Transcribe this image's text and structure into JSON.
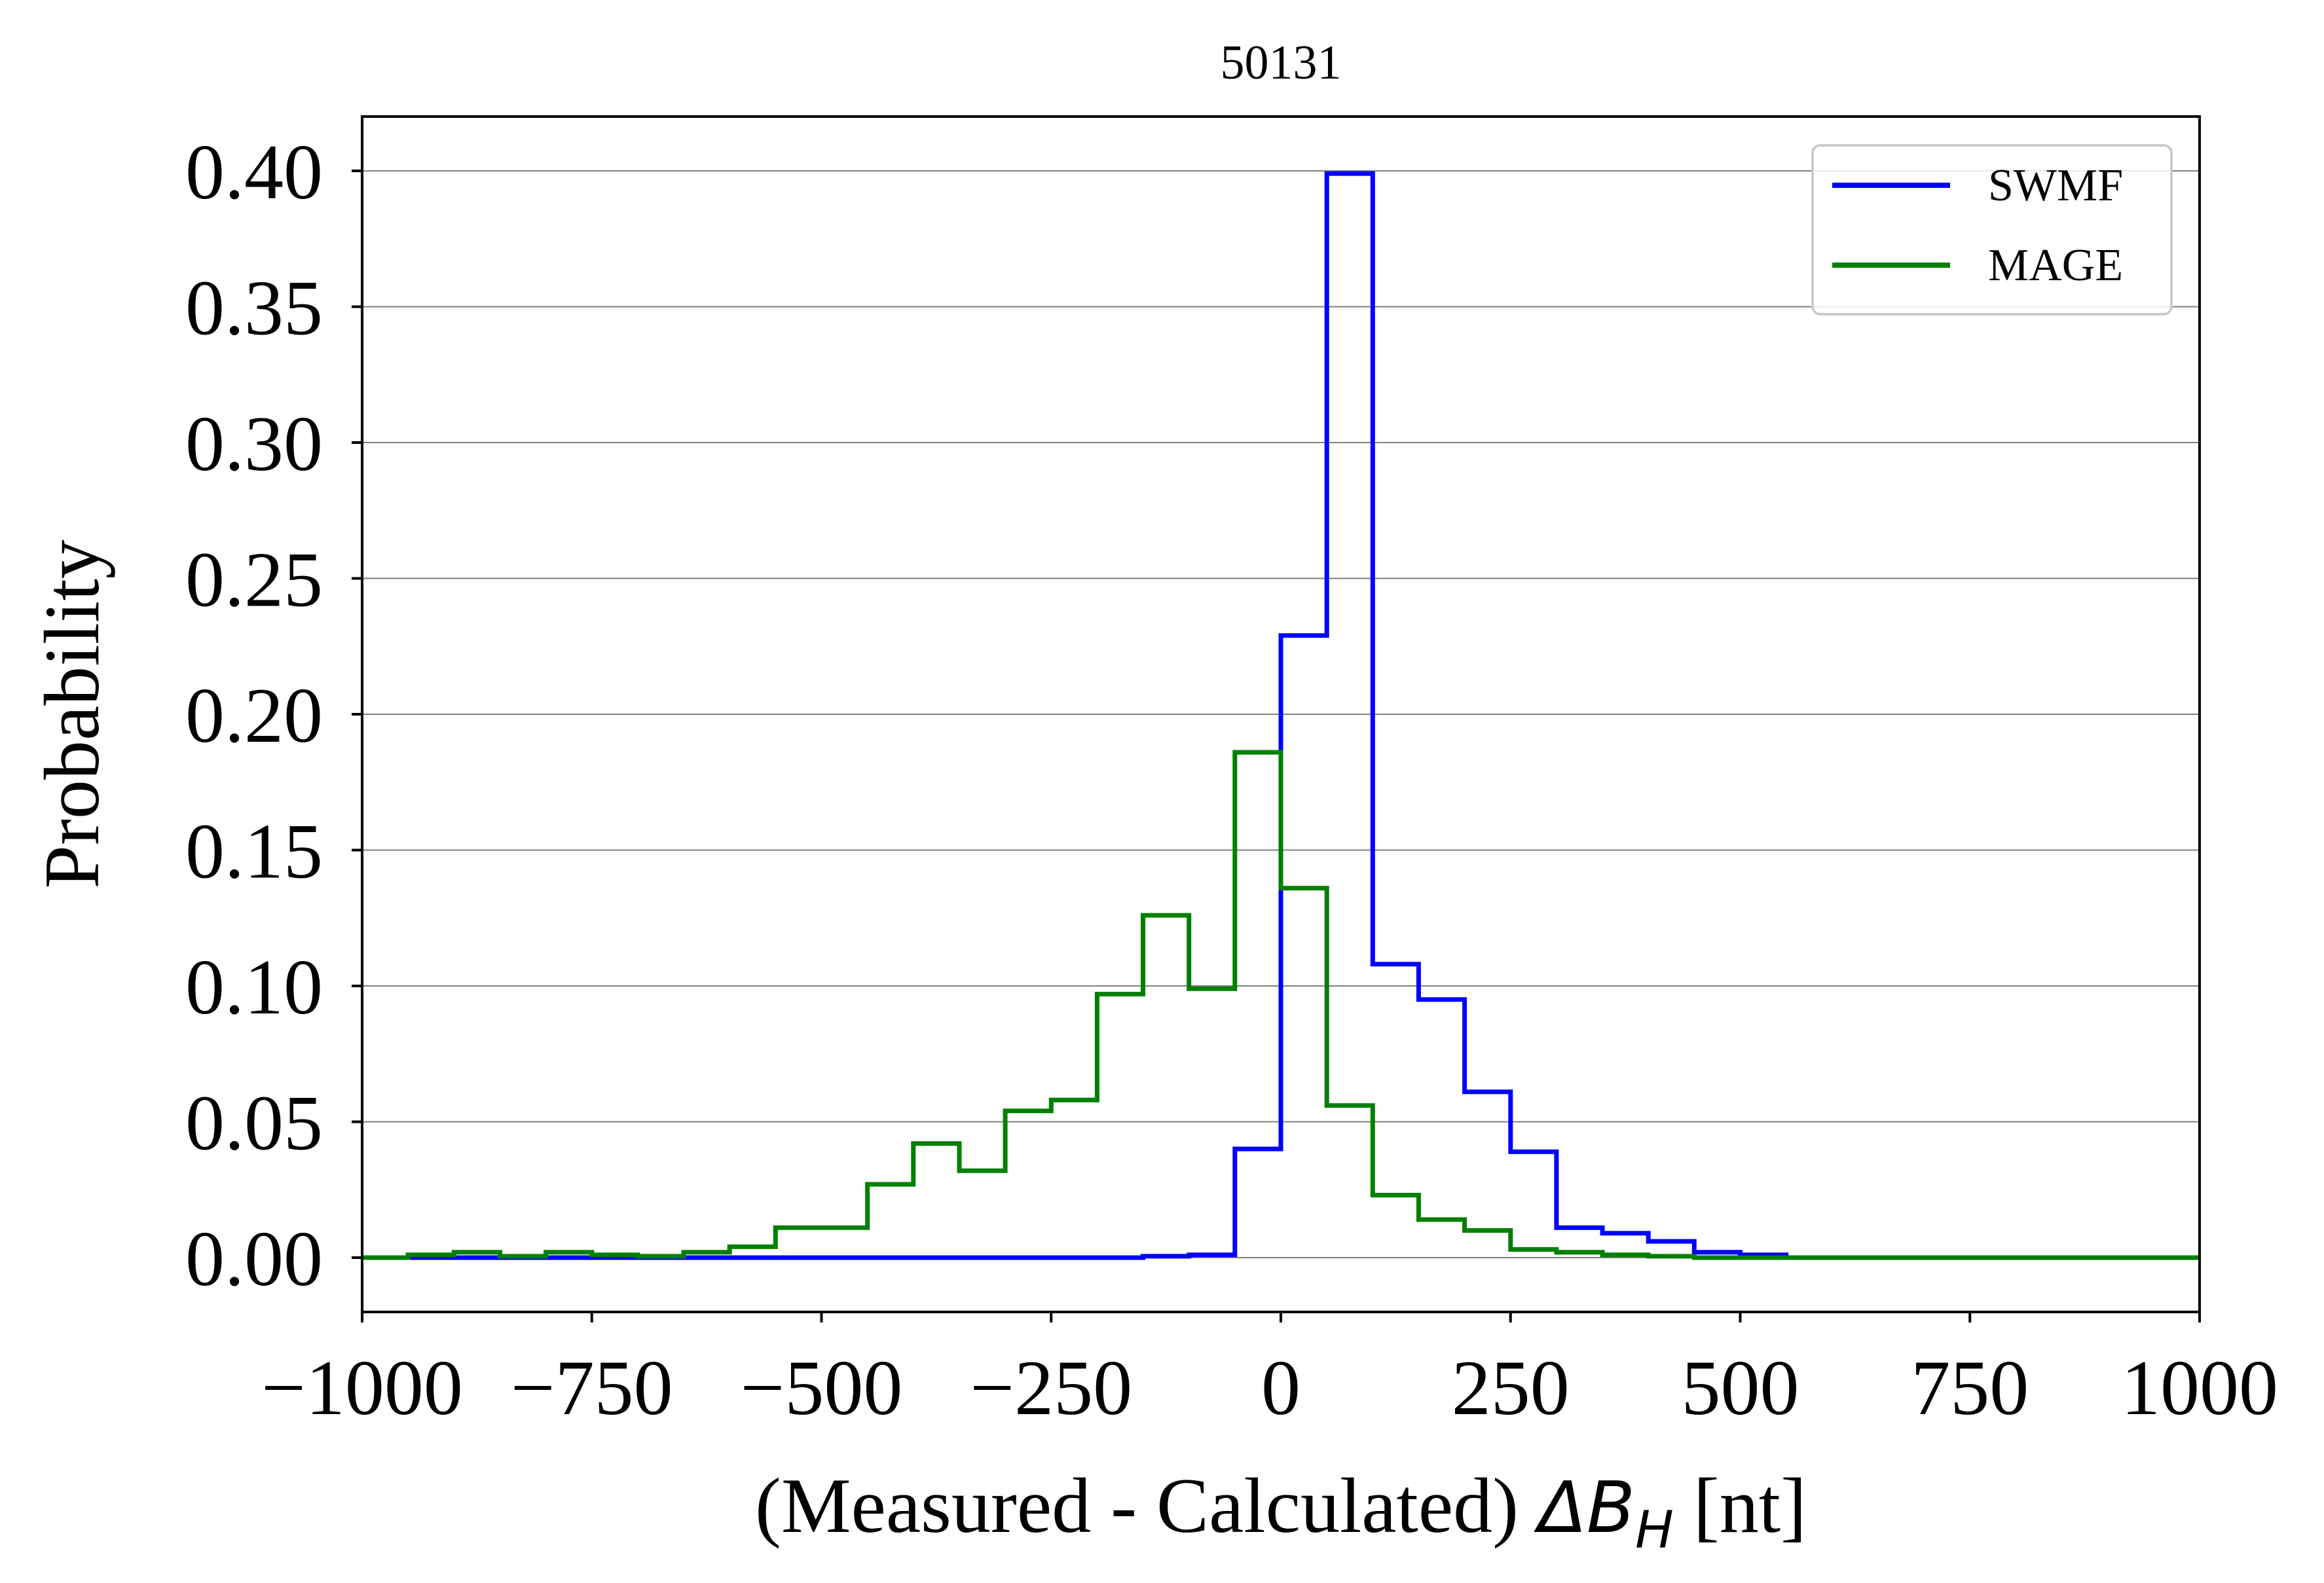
{
  "chart_data": {
    "type": "line",
    "subtype": "step-histogram",
    "title": "50131",
    "xlabel": {
      "prefix": "(Measured - Calculated) ",
      "symbol": "ΔB",
      "subscript": "H",
      "suffix": " [nt]"
    },
    "ylabel": "Probability",
    "xlim": [
      -1000,
      1000
    ],
    "ylim": [
      -0.02,
      0.42
    ],
    "xticks": [
      -1000,
      -750,
      -500,
      -250,
      0,
      250,
      500,
      750,
      1000
    ],
    "xtick_labels": [
      "−1000",
      "−750",
      "−500",
      "−250",
      "0",
      "250",
      "500",
      "750",
      "1000"
    ],
    "yticks": [
      0.0,
      0.05,
      0.1,
      0.15,
      0.2,
      0.25,
      0.3,
      0.35,
      0.4
    ],
    "ytick_labels": [
      "0.00",
      "0.05",
      "0.10",
      "0.15",
      "0.20",
      "0.25",
      "0.30",
      "0.35",
      "0.40"
    ],
    "grid": "horizontal",
    "legend_position": "top-right",
    "bin_edges": [
      -1000,
      -950,
      -900,
      -850,
      -800,
      -750,
      -700,
      -650,
      -600,
      -550,
      -500,
      -450,
      -400,
      -350,
      -300,
      -250,
      -200,
      -150,
      -100,
      -50,
      0,
      50,
      100,
      150,
      200,
      250,
      300,
      350,
      400,
      450,
      500,
      550,
      600,
      650,
      700,
      750,
      800,
      850,
      900,
      950,
      1000
    ],
    "series": [
      {
        "name": "SWMF",
        "color": "#0000ff",
        "values": [
          0,
          0,
          0,
          0,
          0,
          0,
          0,
          0,
          0,
          0,
          0,
          0,
          0,
          0,
          0,
          0,
          0,
          0.0005,
          0.001,
          0.04,
          0.229,
          0.399,
          0.108,
          0.095,
          0.061,
          0.039,
          0.011,
          0.009,
          0.006,
          0.002,
          0.001,
          0,
          0,
          0,
          0,
          0,
          0,
          0,
          0,
          0
        ]
      },
      {
        "name": "MAGE",
        "color": "#008000",
        "values": [
          0,
          0.001,
          0.002,
          0.0005,
          0.002,
          0.001,
          0.0005,
          0.002,
          0.004,
          0.011,
          0.011,
          0.027,
          0.042,
          0.032,
          0.054,
          0.058,
          0.097,
          0.126,
          0.099,
          0.186,
          0.136,
          0.056,
          0.023,
          0.014,
          0.01,
          0.003,
          0.002,
          0.001,
          0.0005,
          0,
          0,
          0,
          0,
          0,
          0,
          0,
          0,
          0,
          0,
          0
        ]
      }
    ]
  }
}
